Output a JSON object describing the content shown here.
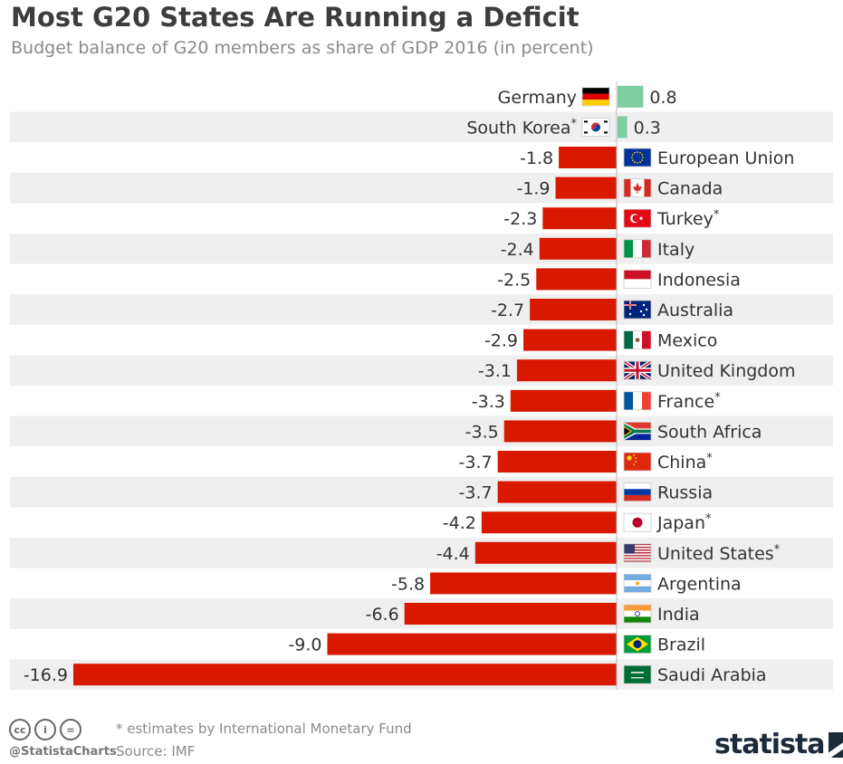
{
  "header": {
    "title": "Most G20 States Are Running a Deficit",
    "subtitle": "Budget balance of G20 members as share of GDP 2016 (in percent)"
  },
  "footer": {
    "note": "* estimates by International Monetary Fund",
    "source": "Source: IMF",
    "handle": "@StatistaCharts",
    "brand": "statista",
    "license_icons": [
      "cc",
      "by",
      "nd"
    ]
  },
  "colors": {
    "positive": "#7fcca0",
    "negative": "#d91800",
    "row_stripe": "#efefef"
  },
  "chart_data": {
    "type": "bar",
    "orientation": "horizontal",
    "title": "Most G20 States Are Running a Deficit",
    "subtitle": "Budget balance of G20 members as share of GDP 2016 (in percent)",
    "categories": [
      "Germany",
      "South Korea*",
      "European Union",
      "Canada",
      "Turkey*",
      "Italy",
      "Indonesia",
      "Australia",
      "Mexico",
      "United Kingdom",
      "France*",
      "South Africa",
      "China*",
      "Russia",
      "Japan*",
      "United States*",
      "Argentina",
      "India",
      "Brazil",
      "Saudi Arabia"
    ],
    "values": [
      0.8,
      0.3,
      -1.8,
      -1.9,
      -2.3,
      -2.4,
      -2.5,
      -2.7,
      -2.9,
      -3.1,
      -3.3,
      -3.5,
      -3.7,
      -3.7,
      -4.2,
      -4.4,
      -5.8,
      -6.6,
      -9.0,
      -16.9
    ],
    "value_labels": [
      "0.8",
      "0.3",
      "-1.8",
      "-1.9",
      "-2.3",
      "-2.4",
      "-2.5",
      "-2.7",
      "-2.9",
      "-3.1",
      "-3.3",
      "-3.5",
      "-3.7",
      "-3.7",
      "-4.2",
      "-4.4",
      "-5.8",
      "-6.6",
      "-9.0",
      "-16.9"
    ],
    "flags": [
      "germany-flag",
      "south-korea-flag",
      "eu-flag",
      "canada-flag",
      "turkey-flag",
      "italy-flag",
      "indonesia-flag",
      "australia-flag",
      "mexico-flag",
      "uk-flag",
      "france-flag",
      "south-africa-flag",
      "china-flag",
      "russia-flag",
      "japan-flag",
      "usa-flag",
      "argentina-flag",
      "india-flag",
      "brazil-flag",
      "saudi-arabia-flag"
    ],
    "xlim": [
      -16.9,
      0.8
    ],
    "grid": false,
    "legend": "none"
  }
}
